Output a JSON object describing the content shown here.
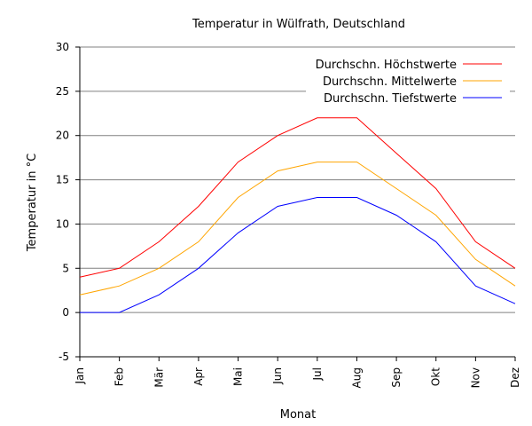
{
  "chart_data": {
    "type": "line",
    "title": "Temperatur in Wülfrath, Deutschland",
    "xlabel": "Monat",
    "ylabel": "Temperatur in °C",
    "ylim": [
      -5,
      30
    ],
    "yticks": [
      -5,
      0,
      5,
      10,
      15,
      20,
      25,
      30
    ],
    "grid": true,
    "legend_position": "top-right",
    "categories": [
      "Jan",
      "Feb",
      "Mär",
      "Apr",
      "Mai",
      "Jun",
      "Jul",
      "Aug",
      "Sep",
      "Okt",
      "Nov",
      "Dez"
    ],
    "series": [
      {
        "name": "Durchschn. Höchstwerte",
        "color": "#ff0000",
        "values": [
          4,
          5,
          8,
          12,
          17,
          20,
          22,
          22,
          18,
          14,
          8,
          5
        ]
      },
      {
        "name": "Durchschn. Mittelwerte",
        "color": "#ffa500",
        "values": [
          2,
          3,
          5,
          8,
          13,
          16,
          17,
          17,
          14,
          11,
          6,
          3
        ]
      },
      {
        "name": "Durchschn. Tiefstwerte",
        "color": "#0000ff",
        "values": [
          0,
          0,
          2,
          5,
          9,
          12,
          13,
          13,
          11,
          8,
          3,
          1
        ]
      }
    ]
  }
}
